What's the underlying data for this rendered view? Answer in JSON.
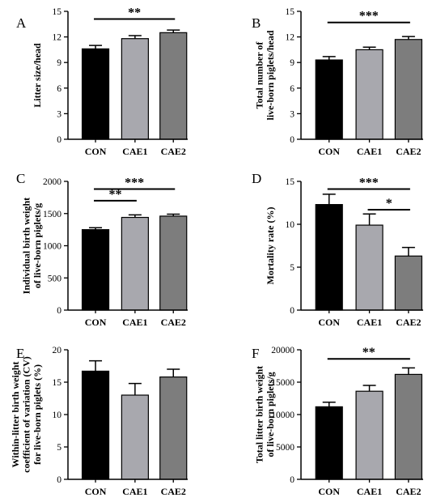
{
  "colors": {
    "CON": "#000000",
    "CAE1": "#a8a8ae",
    "CAE2": "#7d7d7d",
    "axis": "#000000"
  },
  "chart_data": [
    {
      "type": "bar",
      "panel": "A",
      "ylabel": [
        "Litter size/head"
      ],
      "categories": [
        "CON",
        "CAE1",
        "CAE2"
      ],
      "values": [
        10.6,
        11.8,
        12.5
      ],
      "errors": [
        0.4,
        0.35,
        0.3
      ],
      "ylim": [
        0,
        15
      ],
      "yticks": [
        "0",
        "3",
        "6",
        "9",
        "12",
        "15"
      ],
      "brackets": [
        {
          "from": "CON",
          "to": "CAE2",
          "level": 14.1,
          "label": "**"
        }
      ]
    },
    {
      "type": "bar",
      "panel": "B",
      "ylabel": [
        "Total number of",
        "live-born piglets/head"
      ],
      "categories": [
        "CON",
        "CAE1",
        "CAE2"
      ],
      "values": [
        9.3,
        10.5,
        11.7
      ],
      "errors": [
        0.4,
        0.3,
        0.35
      ],
      "ylim": [
        0,
        15
      ],
      "yticks": [
        "0",
        "3",
        "6",
        "9",
        "12",
        "15"
      ],
      "brackets": [
        {
          "from": "CON",
          "to": "CAE2",
          "level": 13.7,
          "label": "***"
        }
      ]
    },
    {
      "type": "bar",
      "panel": "C",
      "ylabel": [
        "Individual birth weight",
        "of live-born piglets/g"
      ],
      "categories": [
        "CON",
        "CAE1",
        "CAE2"
      ],
      "values": [
        1250,
        1440,
        1460
      ],
      "errors": [
        30,
        40,
        30
      ],
      "ylim": [
        0,
        2000
      ],
      "yticks": [
        "0",
        "500",
        "1000",
        "1500",
        "2000"
      ],
      "brackets": [
        {
          "from": "CON",
          "to": "CAE1",
          "level": 1700,
          "label": "**"
        },
        {
          "from": "CON",
          "to": "CAE2",
          "level": 1880,
          "label": "***"
        }
      ]
    },
    {
      "type": "bar",
      "panel": "D",
      "ylabel": [
        "Mortality rate (%)"
      ],
      "categories": [
        "CON",
        "CAE1",
        "CAE2"
      ],
      "values": [
        12.3,
        9.9,
        6.3
      ],
      "errors": [
        1.2,
        1.3,
        1.0
      ],
      "ylim": [
        0,
        15
      ],
      "yticks": [
        "0",
        "5",
        "10",
        "15"
      ],
      "brackets": [
        {
          "from": "CON",
          "to": "CAE2",
          "level": 14.1,
          "label": "***"
        },
        {
          "from": "CAE1",
          "to": "CAE2",
          "level": 11.7,
          "label": "*"
        }
      ]
    },
    {
      "type": "bar",
      "panel": "E",
      "ylabel": [
        "Within-litter birth weight",
        "coefficient of variation (CV)",
        "for live-born piglets (%)"
      ],
      "categories": [
        "CON",
        "CAE1",
        "CAE2"
      ],
      "values": [
        16.7,
        13.0,
        15.8
      ],
      "errors": [
        1.6,
        1.8,
        1.2
      ],
      "ylim": [
        0,
        20
      ],
      "yticks": [
        "0",
        "5",
        "10",
        "15",
        "20"
      ],
      "brackets": []
    },
    {
      "type": "bar",
      "panel": "F",
      "ylabel": [
        "Total litter birth weight",
        "of live-born piglets/g"
      ],
      "categories": [
        "CON",
        "CAE1",
        "CAE2"
      ],
      "values": [
        11200,
        13600,
        16200
      ],
      "errors": [
        700,
        900,
        1000
      ],
      "ylim": [
        0,
        20000
      ],
      "yticks": [
        "0",
        "5000",
        "10000",
        "15000",
        "20000"
      ],
      "brackets": [
        {
          "from": "CON",
          "to": "CAE2",
          "level": 18600,
          "label": "**"
        }
      ]
    }
  ]
}
